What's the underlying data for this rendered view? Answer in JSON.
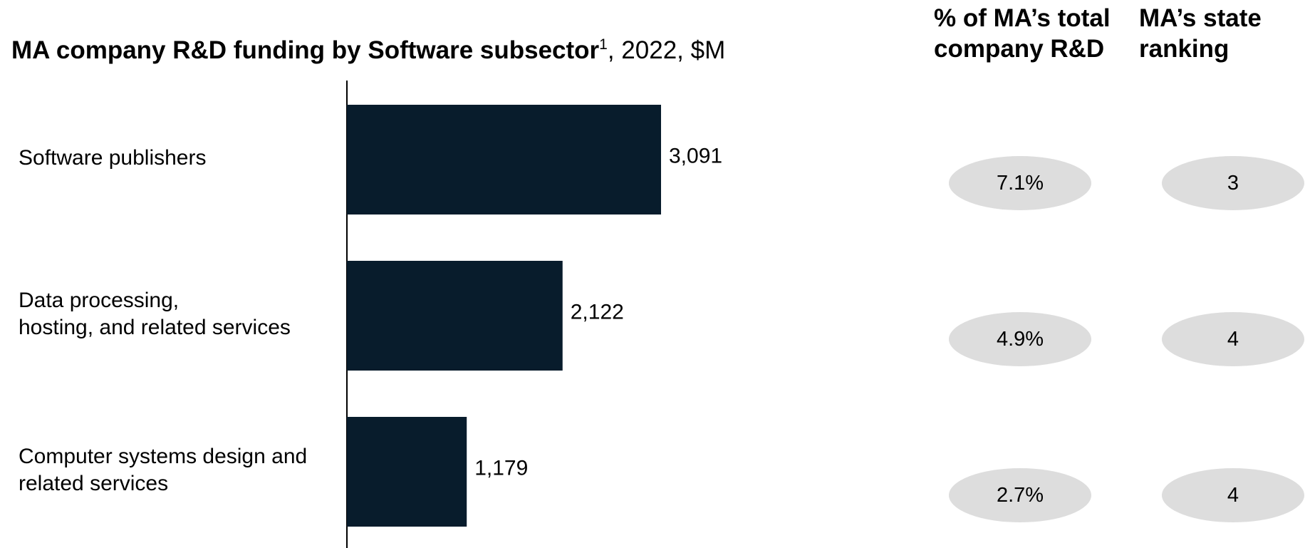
{
  "title": {
    "bold": "MA company R&D funding by Software subsector",
    "sup": "1",
    "rest": ", 2022, $M"
  },
  "columns": {
    "pct_header": [
      "% of MA’s total",
      "company R&D"
    ],
    "rank_header": [
      "MA’s state",
      "ranking"
    ]
  },
  "chart_data": {
    "type": "bar",
    "orientation": "horizontal",
    "title": "MA company R&D funding by Software subsector, 2022, $M",
    "categories": [
      [
        "Software publishers"
      ],
      [
        "Data processing,",
        "hosting, and related services"
      ],
      [
        "Computer systems design and",
        "related services"
      ]
    ],
    "values": [
      3091,
      2122,
      1179
    ],
    "value_labels": [
      "3,091",
      "2,122",
      "1,179"
    ],
    "xlim": [
      0,
      3091
    ],
    "bar_color": "#081c2c",
    "grid": false,
    "axis_color": "#000000"
  },
  "table": {
    "pct": [
      "7.1%",
      "4.9%",
      "2.7%"
    ],
    "rank": [
      "3",
      "4",
      "4"
    ],
    "pill_color": "#dddddd"
  }
}
